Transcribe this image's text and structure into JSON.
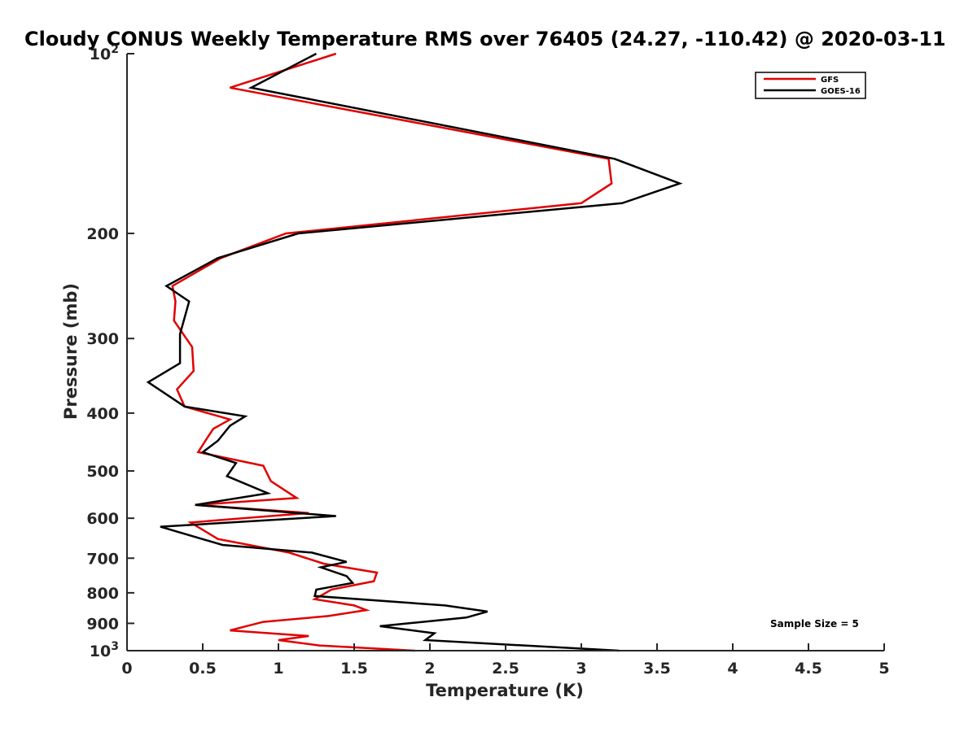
{
  "chart_data": {
    "type": "line",
    "title": "Cloudy CONUS Weekly Temperature RMS over 76405 (24.27, -110.42) @ 2020-03-11",
    "xlabel": "Temperature (K)",
    "ylabel": "Pressure (mb)",
    "xlim": [
      0,
      5
    ],
    "ylim": [
      100,
      1000
    ],
    "yscale": "log",
    "y_reversed": true,
    "xticks": [
      0,
      0.5,
      1,
      1.5,
      2,
      2.5,
      3,
      3.5,
      4,
      4.5,
      5
    ],
    "xtick_labels": [
      "0",
      "0.5",
      "1",
      "1.5",
      "2",
      "2.5",
      "3",
      "3.5",
      "4",
      "4.5",
      "5"
    ],
    "yticks": [
      100,
      200,
      300,
      400,
      500,
      600,
      700,
      800,
      900,
      1000
    ],
    "ytick_labels": [
      {
        "base": "10",
        "exp": "2"
      },
      {
        "base": "200",
        "exp": ""
      },
      {
        "base": "300",
        "exp": ""
      },
      {
        "base": "400",
        "exp": ""
      },
      {
        "base": "500",
        "exp": ""
      },
      {
        "base": "600",
        "exp": ""
      },
      {
        "base": "700",
        "exp": ""
      },
      {
        "base": "800",
        "exp": ""
      },
      {
        "base": "900",
        "exp": ""
      },
      {
        "base": "10",
        "exp": "3"
      }
    ],
    "grid": false,
    "legend_position": "top-right",
    "annotation": "Sample Size = 5",
    "series": [
      {
        "name": "GFS",
        "color": "#e00000",
        "x": [
          1.38,
          0.68,
          3.18,
          3.2,
          3.0,
          1.05,
          0.62,
          0.3,
          0.32,
          0.31,
          0.43,
          0.44,
          0.33,
          0.38,
          0.68,
          0.57,
          0.53,
          0.47,
          0.9,
          0.95,
          1.12,
          0.45,
          1.2,
          0.42,
          0.6,
          1.07,
          1.3,
          1.65,
          1.63,
          1.35,
          1.24,
          1.5,
          1.58,
          1.33,
          0.9,
          0.68,
          1.2,
          1.0,
          1.27,
          1.9
        ],
        "y": [
          100,
          114,
          150,
          165,
          178,
          200,
          220,
          245,
          260,
          280,
          310,
          340,
          365,
          390,
          410,
          425,
          440,
          465,
          490,
          520,
          555,
          570,
          588,
          610,
          650,
          685,
          715,
          740,
          765,
          790,
          820,
          840,
          855,
          875,
          895,
          925,
          945,
          960,
          980,
          1000
        ]
      },
      {
        "name": "GOES-16",
        "color": "#000000",
        "x": [
          1.25,
          0.82,
          3.22,
          3.65,
          3.27,
          1.13,
          0.6,
          0.26,
          0.41,
          0.35,
          0.35,
          0.14,
          0.38,
          0.78,
          0.68,
          0.6,
          0.5,
          0.72,
          0.66,
          0.93,
          0.45,
          1.38,
          0.22,
          0.63,
          1.22,
          1.45,
          1.28,
          1.45,
          1.49,
          1.25,
          1.24,
          2.1,
          2.38,
          2.24,
          1.67,
          2.03,
          1.97,
          3.25
        ],
        "y": [
          100,
          114,
          150,
          165,
          178,
          200,
          220,
          245,
          260,
          295,
          330,
          355,
          390,
          405,
          420,
          445,
          465,
          485,
          510,
          545,
          570,
          595,
          620,
          665,
          685,
          710,
          725,
          750,
          770,
          790,
          810,
          840,
          860,
          880,
          910,
          935,
          960,
          1000
        ]
      }
    ]
  }
}
